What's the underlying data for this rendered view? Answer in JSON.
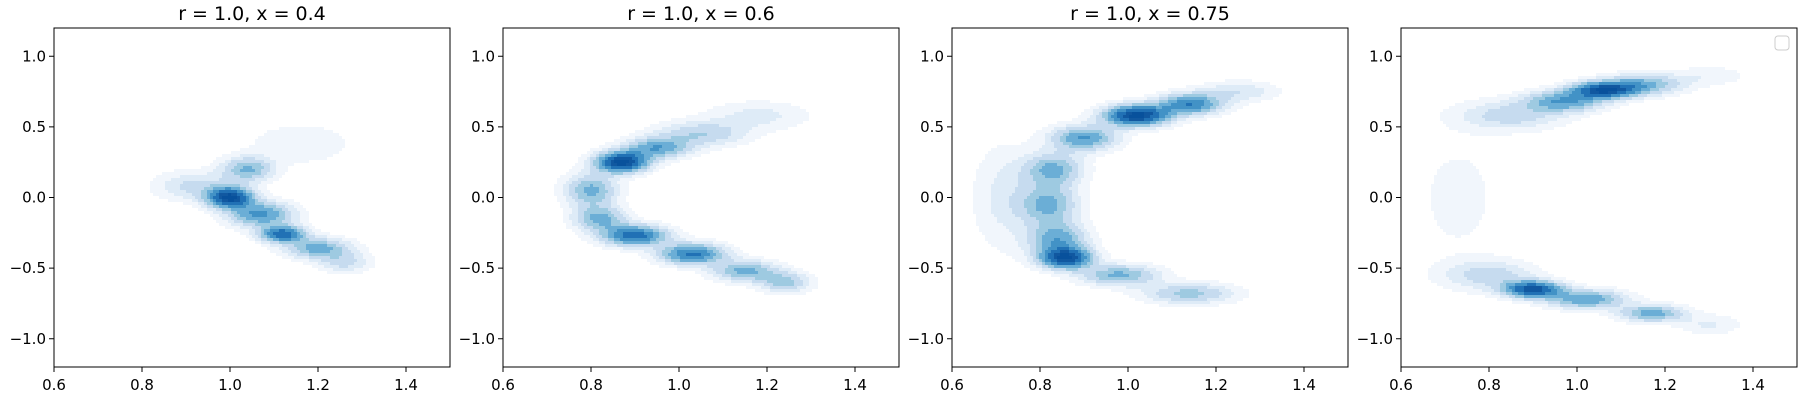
{
  "chart_data": [
    {
      "type": "kde_contour",
      "title": "r = 1.0, x = 0.4",
      "xlim": [
        0.6,
        1.5
      ],
      "ylim": [
        -1.2,
        1.2
      ],
      "xticks": [
        0.6,
        0.8,
        1.0,
        1.2,
        1.4
      ],
      "xtick_labels": [
        "0.6",
        "0.8",
        "1.0",
        "1.2",
        "1.4"
      ],
      "yticks": [
        1.0,
        0.5,
        0.0,
        -0.5,
        -1.0
      ],
      "ytick_labels": [
        "1.0",
        "0.5",
        "0.0",
        "−0.5",
        "−1.0"
      ],
      "legend": false,
      "density_components": [
        {
          "x": 1.0,
          "y": 0.0,
          "sx": 0.035,
          "sy": 0.05,
          "w": 1.0
        },
        {
          "x": 1.04,
          "y": 0.2,
          "sx": 0.04,
          "sy": 0.06,
          "w": 0.45
        },
        {
          "x": 1.07,
          "y": -0.12,
          "sx": 0.05,
          "sy": 0.06,
          "w": 0.6
        },
        {
          "x": 1.12,
          "y": -0.26,
          "sx": 0.035,
          "sy": 0.04,
          "w": 0.8
        },
        {
          "x": 1.2,
          "y": -0.36,
          "sx": 0.05,
          "sy": 0.05,
          "w": 0.5
        },
        {
          "x": 1.26,
          "y": -0.46,
          "sx": 0.04,
          "sy": 0.05,
          "w": 0.25
        },
        {
          "x": 0.92,
          "y": 0.08,
          "sx": 0.06,
          "sy": 0.07,
          "w": 0.25
        },
        {
          "x": 1.16,
          "y": 0.38,
          "sx": 0.08,
          "sy": 0.1,
          "w": 0.12
        }
      ]
    },
    {
      "type": "kde_contour",
      "title": "r = 1.0, x = 0.6",
      "xlim": [
        0.6,
        1.5
      ],
      "ylim": [
        -1.2,
        1.2
      ],
      "xticks": [
        0.6,
        0.8,
        1.0,
        1.2,
        1.4
      ],
      "xtick_labels": [
        "0.6",
        "0.8",
        "1.0",
        "1.2",
        "1.4"
      ],
      "yticks": [
        1.0,
        0.5,
        0.0,
        -0.5,
        -1.0
      ],
      "ytick_labels": [
        "1.0",
        "0.5",
        "0.0",
        "−0.5",
        "−1.0"
      ],
      "legend": false,
      "density_components": [
        {
          "x": 0.87,
          "y": 0.25,
          "sx": 0.04,
          "sy": 0.05,
          "w": 1.0
        },
        {
          "x": 0.95,
          "y": 0.35,
          "sx": 0.05,
          "sy": 0.05,
          "w": 0.5
        },
        {
          "x": 1.05,
          "y": 0.45,
          "sx": 0.07,
          "sy": 0.06,
          "w": 0.3
        },
        {
          "x": 1.18,
          "y": 0.58,
          "sx": 0.08,
          "sy": 0.07,
          "w": 0.15
        },
        {
          "x": 0.8,
          "y": 0.05,
          "sx": 0.04,
          "sy": 0.08,
          "w": 0.45
        },
        {
          "x": 0.82,
          "y": -0.15,
          "sx": 0.04,
          "sy": 0.06,
          "w": 0.45
        },
        {
          "x": 0.9,
          "y": -0.27,
          "sx": 0.05,
          "sy": 0.05,
          "w": 0.75
        },
        {
          "x": 1.03,
          "y": -0.4,
          "sx": 0.05,
          "sy": 0.05,
          "w": 0.7
        },
        {
          "x": 1.15,
          "y": -0.52,
          "sx": 0.05,
          "sy": 0.05,
          "w": 0.45
        },
        {
          "x": 1.24,
          "y": -0.6,
          "sx": 0.04,
          "sy": 0.05,
          "w": 0.35
        }
      ]
    },
    {
      "type": "kde_contour",
      "title": "r = 1.0, x = 0.75",
      "xlim": [
        0.6,
        1.5
      ],
      "ylim": [
        -1.2,
        1.2
      ],
      "xticks": [
        0.6,
        0.8,
        1.0,
        1.2,
        1.4
      ],
      "xtick_labels": [
        "0.6",
        "0.8",
        "1.0",
        "1.2",
        "1.4"
      ],
      "yticks": [
        1.0,
        0.5,
        0.0,
        -0.5,
        -1.0
      ],
      "ytick_labels": [
        "1.0",
        "0.5",
        "0.0",
        "−0.5",
        "−1.0"
      ],
      "legend": false,
      "density_components": [
        {
          "x": 1.02,
          "y": 0.58,
          "sx": 0.05,
          "sy": 0.05,
          "w": 1.0
        },
        {
          "x": 1.14,
          "y": 0.66,
          "sx": 0.05,
          "sy": 0.05,
          "w": 0.65
        },
        {
          "x": 0.9,
          "y": 0.42,
          "sx": 0.05,
          "sy": 0.06,
          "w": 0.55
        },
        {
          "x": 0.83,
          "y": 0.2,
          "sx": 0.045,
          "sy": 0.08,
          "w": 0.45
        },
        {
          "x": 0.82,
          "y": -0.05,
          "sx": 0.045,
          "sy": 0.1,
          "w": 0.45
        },
        {
          "x": 0.84,
          "y": -0.3,
          "sx": 0.045,
          "sy": 0.08,
          "w": 0.5
        },
        {
          "x": 0.86,
          "y": -0.43,
          "sx": 0.04,
          "sy": 0.05,
          "w": 0.9
        },
        {
          "x": 0.98,
          "y": -0.55,
          "sx": 0.06,
          "sy": 0.05,
          "w": 0.45
        },
        {
          "x": 1.14,
          "y": -0.68,
          "sx": 0.07,
          "sy": 0.05,
          "w": 0.35
        },
        {
          "x": 0.72,
          "y": 0.0,
          "sx": 0.05,
          "sy": 0.25,
          "w": 0.15
        },
        {
          "x": 1.25,
          "y": 0.75,
          "sx": 0.06,
          "sy": 0.05,
          "w": 0.2
        }
      ]
    },
    {
      "type": "kde_contour",
      "title": "",
      "xlim": [
        0.6,
        1.5
      ],
      "ylim": [
        -1.2,
        1.2
      ],
      "xticks": [
        0.6,
        0.8,
        1.0,
        1.2,
        1.4
      ],
      "xtick_labels": [
        "0.6",
        "0.8",
        "1.0",
        "1.2",
        "1.4"
      ],
      "yticks": [
        1.0,
        0.5,
        0.0,
        -0.5,
        -1.0
      ],
      "ytick_labels": [
        "1.0",
        "0.5",
        "0.0",
        "−0.5",
        "−1.0"
      ],
      "legend": "top-right (empty)",
      "density_components": [
        {
          "x": 1.06,
          "y": 0.76,
          "sx": 0.05,
          "sy": 0.04,
          "w": 1.0
        },
        {
          "x": 0.97,
          "y": 0.68,
          "sx": 0.06,
          "sy": 0.05,
          "w": 0.6
        },
        {
          "x": 1.15,
          "y": 0.8,
          "sx": 0.06,
          "sy": 0.05,
          "w": 0.5
        },
        {
          "x": 0.85,
          "y": 0.58,
          "sx": 0.08,
          "sy": 0.07,
          "w": 0.3
        },
        {
          "x": 0.9,
          "y": -0.65,
          "sx": 0.045,
          "sy": 0.04,
          "w": 1.0
        },
        {
          "x": 1.02,
          "y": -0.72,
          "sx": 0.06,
          "sy": 0.045,
          "w": 0.6
        },
        {
          "x": 1.17,
          "y": -0.82,
          "sx": 0.05,
          "sy": 0.04,
          "w": 0.55
        },
        {
          "x": 0.8,
          "y": -0.55,
          "sx": 0.07,
          "sy": 0.07,
          "w": 0.3
        },
        {
          "x": 0.73,
          "y": 0.0,
          "sx": 0.08,
          "sy": 0.35,
          "w": 0.08
        },
        {
          "x": 1.3,
          "y": -0.9,
          "sx": 0.05,
          "sy": 0.05,
          "w": 0.15
        },
        {
          "x": 1.3,
          "y": 0.86,
          "sx": 0.06,
          "sy": 0.05,
          "w": 0.12
        }
      ]
    }
  ],
  "colormap": [
    "#f1f6fc",
    "#deebf7",
    "#c6dbef",
    "#9ecae1",
    "#6baed6",
    "#4292c6",
    "#2171b5",
    "#1158a0",
    "#08519c"
  ],
  "contour_levels": [
    0.05,
    0.12,
    0.2,
    0.3,
    0.4,
    0.52,
    0.65,
    0.8,
    0.92
  ]
}
